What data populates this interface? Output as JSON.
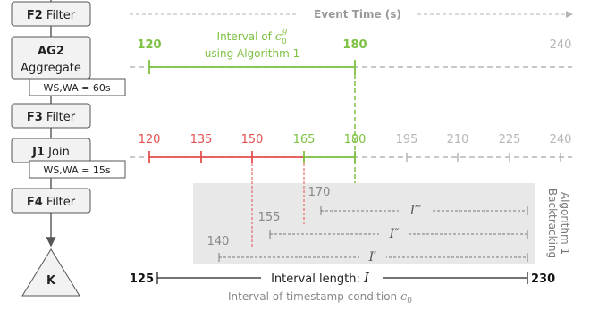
{
  "colors": {
    "green": "#7dc142",
    "red": "#e4504e",
    "gray": "#b5b5b5",
    "dark": "#333333",
    "box_bg": "#f2f2f2",
    "shade": "#e8e8e8"
  },
  "operators": {
    "f2": {
      "bold": "F2",
      "text": " Filter"
    },
    "ag2": {
      "bold": "AG2",
      "text": "Aggregate"
    },
    "ag2_window": "WS,WA = 60s",
    "f3": {
      "bold": "F3",
      "text": " Filter"
    },
    "j1": {
      "bold": "J1",
      "text": " Join"
    },
    "j1_window": "WS,WA = 15s",
    "f4": {
      "bold": "F4",
      "text": " Filter"
    },
    "sink": "K"
  },
  "axis": {
    "title": "Event Time (s)"
  },
  "ag2_timeline": {
    "ticks": [
      "120",
      "180",
      "240"
    ],
    "caption_line1": "Interval of ",
    "caption_math": "c",
    "caption_sub": "0",
    "caption_sup": "g",
    "caption_line2": "using Algorithm 1"
  },
  "j1_timeline": {
    "ticks": [
      "120",
      "135",
      "150",
      "165",
      "180",
      "195",
      "210",
      "225",
      "240"
    ]
  },
  "backtracking": {
    "label_line1": "Algorithm 1",
    "label_line2": "Backtracking",
    "intervals": [
      {
        "start": "170",
        "name": "I‴"
      },
      {
        "start": "155",
        "name": "I″"
      },
      {
        "start": "140",
        "name": "I′"
      }
    ]
  },
  "bottom": {
    "left": "125",
    "right": "230",
    "length_label": "Interval length: ",
    "length_var": "I",
    "caption": "Interval of timestamp condition ",
    "caption_var": "c",
    "caption_sub": "0"
  }
}
